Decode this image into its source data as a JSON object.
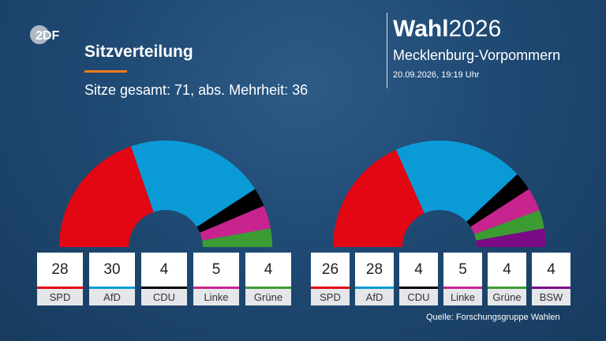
{
  "header": {
    "logo_text": "2DF",
    "title": "Sitzverteilung",
    "subtitle": "Sitze gesamt: 71, abs. Mehrheit: 36",
    "brand_bold": "Wahl",
    "brand_year": "2026",
    "region": "Mecklenburg-Vorpommern",
    "datetime": "20.09.2026, 19:19 Uhr"
  },
  "colors": {
    "SPD": "#e30613",
    "AfD": "#0a9bd7",
    "CDU": "#000000",
    "Linke": "#c8248f",
    "Grüne": "#3c9c34",
    "BSW": "#7b0a85",
    "accent": "#f07a1a"
  },
  "chart_data": [
    {
      "type": "pie",
      "variant": "semicircle",
      "total": 71,
      "categories": [
        "SPD",
        "AfD",
        "CDU",
        "Linke",
        "Grüne"
      ],
      "values": [
        28,
        30,
        4,
        5,
        4
      ]
    },
    {
      "type": "pie",
      "variant": "semicircle",
      "total": 71,
      "categories": [
        "SPD",
        "AfD",
        "CDU",
        "Linke",
        "Grüne",
        "BSW"
      ],
      "values": [
        26,
        28,
        4,
        5,
        4,
        4
      ]
    }
  ],
  "footer": {
    "source": "Quelle: Forschungsgruppe Wahlen"
  }
}
